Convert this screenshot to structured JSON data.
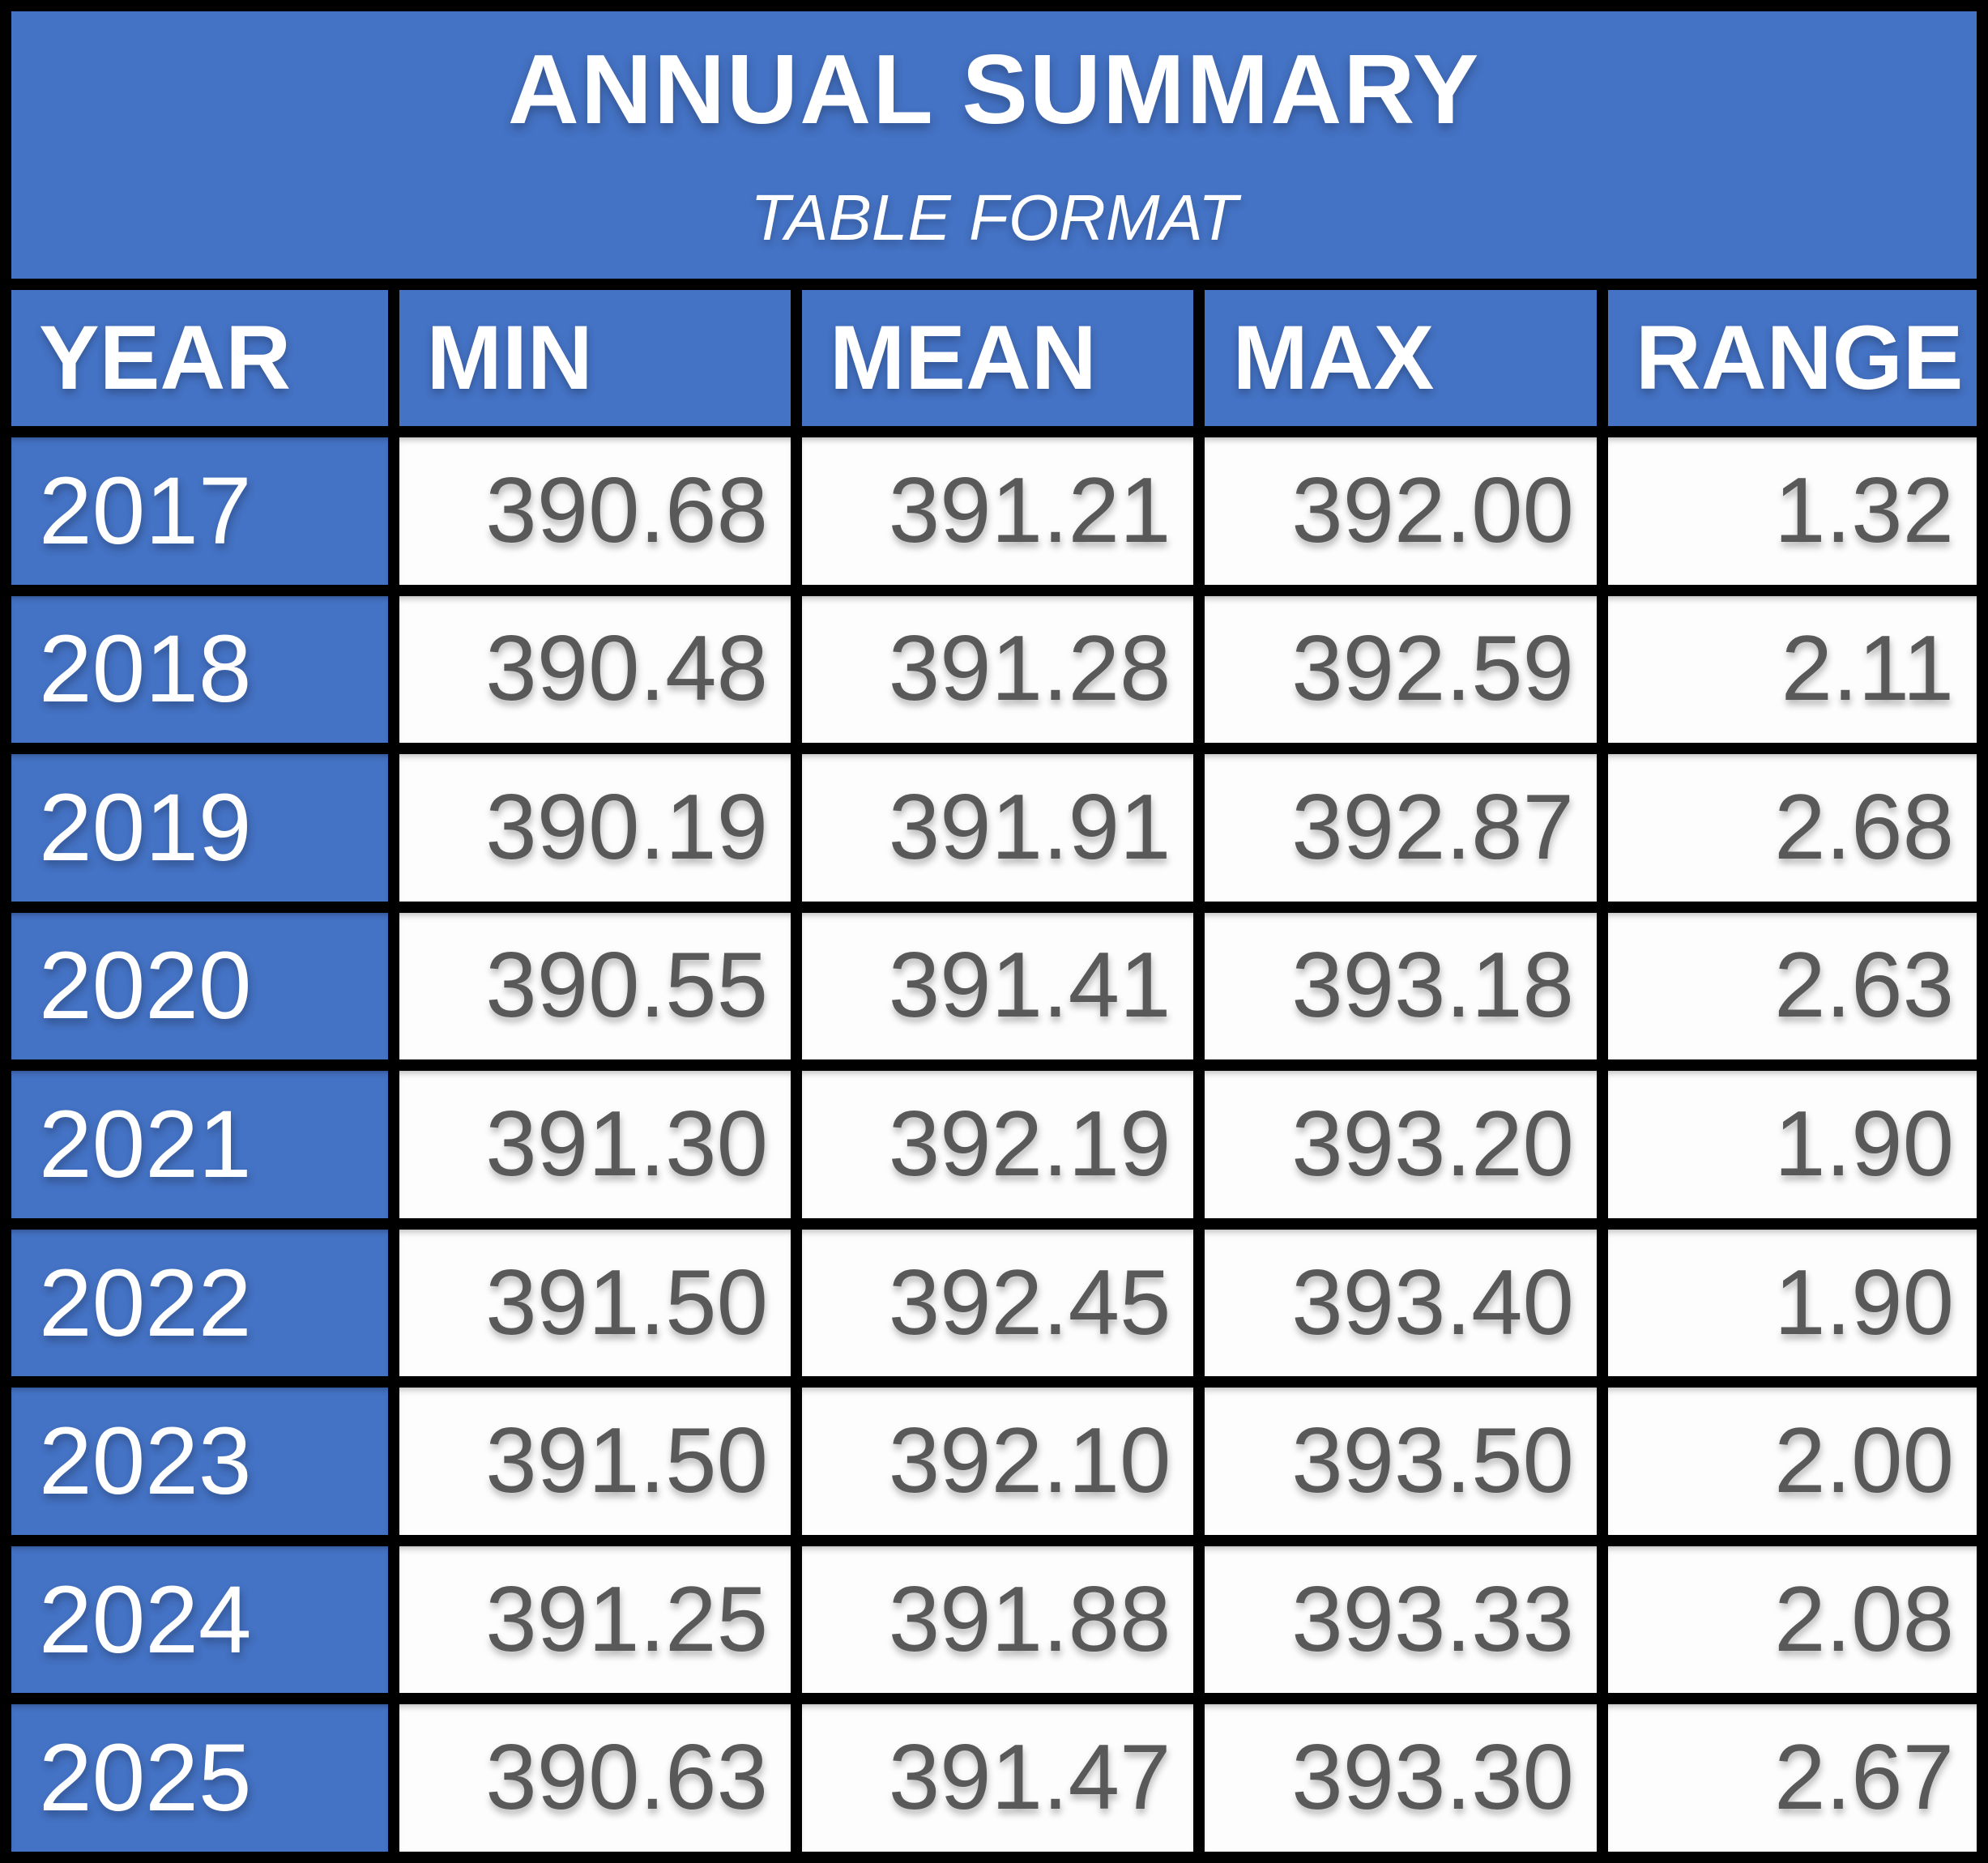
{
  "title": {
    "main": "ANNUAL SUMMARY",
    "sub": "TABLE FORMAT"
  },
  "columns": [
    "YEAR",
    "MIN",
    "MEAN",
    "MAX",
    "RANGE"
  ],
  "rows": [
    {
      "year": "2017",
      "min": "390.68",
      "mean": "391.21",
      "max": "392.00",
      "range": "1.32"
    },
    {
      "year": "2018",
      "min": "390.48",
      "mean": "391.28",
      "max": "392.59",
      "range": "2.11"
    },
    {
      "year": "2019",
      "min": "390.19",
      "mean": "391.91",
      "max": "392.87",
      "range": "2.68"
    },
    {
      "year": "2020",
      "min": "390.55",
      "mean": "391.41",
      "max": "393.18",
      "range": "2.63"
    },
    {
      "year": "2021",
      "min": "391.30",
      "mean": "392.19",
      "max": "393.20",
      "range": "1.90"
    },
    {
      "year": "2022",
      "min": "391.50",
      "mean": "392.45",
      "max": "393.40",
      "range": "1.90"
    },
    {
      "year": "2023",
      "min": "391.50",
      "mean": "392.10",
      "max": "393.50",
      "range": "2.00"
    },
    {
      "year": "2024",
      "min": "391.25",
      "mean": "391.88",
      "max": "393.33",
      "range": "2.08"
    },
    {
      "year": "2025",
      "min": "390.63",
      "mean": "391.47",
      "max": "393.30",
      "range": "2.67"
    }
  ],
  "colors": {
    "header_blue": "#4472C4",
    "grid_black": "#000000",
    "value_text_gray": "#595959",
    "header_text_white": "#FFFFFF",
    "value_cell_bg": "#FDFDFD"
  },
  "chart_data": {
    "type": "table",
    "title": "ANNUAL SUMMARY",
    "subtitle": "TABLE FORMAT",
    "columns": [
      "YEAR",
      "MIN",
      "MEAN",
      "MAX",
      "RANGE"
    ],
    "rows": [
      [
        2017,
        390.68,
        391.21,
        392.0,
        1.32
      ],
      [
        2018,
        390.48,
        391.28,
        392.59,
        2.11
      ],
      [
        2019,
        390.19,
        391.91,
        392.87,
        2.68
      ],
      [
        2020,
        390.55,
        391.41,
        393.18,
        2.63
      ],
      [
        2021,
        391.3,
        392.19,
        393.2,
        1.9
      ],
      [
        2022,
        391.5,
        392.45,
        393.4,
        1.9
      ],
      [
        2023,
        391.5,
        392.1,
        393.5,
        2.0
      ],
      [
        2024,
        391.25,
        391.88,
        393.33,
        2.08
      ],
      [
        2025,
        390.63,
        391.47,
        393.3,
        2.67
      ]
    ]
  }
}
